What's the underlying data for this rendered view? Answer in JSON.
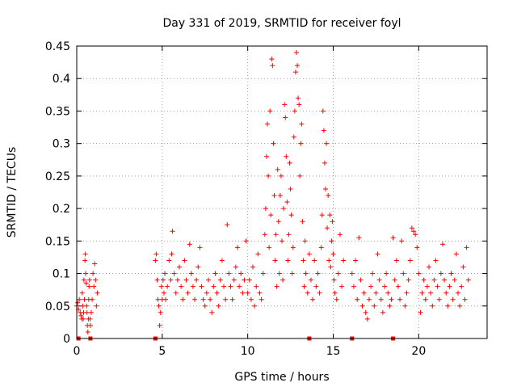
{
  "chart_data": {
    "type": "scatter",
    "title": "Day 331 of 2019, SRMTID for receiver foyl",
    "xlabel": "GPS time / hours",
    "ylabel": "SRMTID / TECUs",
    "xlim": [
      0,
      24
    ],
    "ylim": [
      0,
      0.45
    ],
    "x_ticks": [
      0,
      5,
      10,
      15,
      20
    ],
    "y_ticks": [
      0,
      0.05,
      0.1,
      0.15,
      0.2,
      0.25,
      0.3,
      0.35,
      0.4,
      0.45
    ],
    "y_tick_labels": [
      "0",
      "0.05",
      "0.1",
      "0.15",
      "0.2",
      "0.25",
      "0.3",
      "0.35",
      "0.4",
      "0.45"
    ],
    "grid": true,
    "marker": "+",
    "color": "#ff0000",
    "zero_markers_x": [
      0.1,
      0.8,
      4.6,
      13.6,
      16.1,
      18.5
    ],
    "series": [
      {
        "points": [
          [
            0.0,
            0.05
          ],
          [
            0.05,
            0.055
          ],
          [
            0.1,
            0.045
          ],
          [
            0.15,
            0.06
          ],
          [
            0.2,
            0.04
          ],
          [
            0.25,
            0.035
          ],
          [
            0.3,
            0.03
          ],
          [
            0.32,
            0.07
          ],
          [
            0.35,
            0.05
          ],
          [
            0.38,
            0.03
          ],
          [
            0.4,
            0.04
          ],
          [
            0.42,
            0.09
          ],
          [
            0.45,
            0.06
          ],
          [
            0.48,
            0.12
          ],
          [
            0.5,
            0.13
          ],
          [
            0.52,
            0.1
          ],
          [
            0.55,
            0.085
          ],
          [
            0.58,
            0.05
          ],
          [
            0.6,
            0.04
          ],
          [
            0.62,
            0.02
          ],
          [
            0.65,
            0.01
          ],
          [
            0.68,
            0.03
          ],
          [
            0.7,
            0.06
          ],
          [
            0.72,
            0.08
          ],
          [
            0.75,
            0.09
          ],
          [
            0.78,
            0.03
          ],
          [
            0.8,
            0.02
          ],
          [
            0.85,
            0.04
          ],
          [
            0.9,
            0.06
          ],
          [
            0.95,
            0.1
          ],
          [
            1.0,
            0.08
          ],
          [
            1.05,
            0.115
          ],
          [
            1.1,
            0.09
          ],
          [
            1.15,
            0.05
          ],
          [
            1.2,
            0.07
          ],
          [
            4.6,
            0.12
          ],
          [
            4.65,
            0.13
          ],
          [
            4.7,
            0.09
          ],
          [
            4.75,
            0.06
          ],
          [
            4.8,
            0.05
          ],
          [
            4.85,
            0.02
          ],
          [
            4.9,
            0.04
          ],
          [
            4.95,
            0.08
          ],
          [
            5.0,
            0.06
          ],
          [
            5.05,
            0.09
          ],
          [
            5.1,
            0.07
          ],
          [
            5.15,
            0.1
          ],
          [
            5.2,
            0.06
          ],
          [
            5.3,
            0.08
          ],
          [
            5.4,
            0.12
          ],
          [
            5.5,
            0.09
          ],
          [
            5.55,
            0.13
          ],
          [
            5.6,
            0.165
          ],
          [
            5.7,
            0.1
          ],
          [
            5.8,
            0.07
          ],
          [
            5.9,
            0.09
          ],
          [
            6.0,
            0.11
          ],
          [
            6.1,
            0.08
          ],
          [
            6.2,
            0.06
          ],
          [
            6.3,
            0.12
          ],
          [
            6.4,
            0.09
          ],
          [
            6.5,
            0.07
          ],
          [
            6.6,
            0.145
          ],
          [
            6.7,
            0.1
          ],
          [
            6.8,
            0.08
          ],
          [
            6.9,
            0.06
          ],
          [
            7.0,
            0.09
          ],
          [
            7.1,
            0.11
          ],
          [
            7.2,
            0.14
          ],
          [
            7.3,
            0.08
          ],
          [
            7.4,
            0.06
          ],
          [
            7.5,
            0.05
          ],
          [
            7.6,
            0.07
          ],
          [
            7.7,
            0.09
          ],
          [
            7.8,
            0.06
          ],
          [
            7.9,
            0.04
          ],
          [
            8.0,
            0.08
          ],
          [
            8.1,
            0.1
          ],
          [
            8.2,
            0.07
          ],
          [
            8.3,
            0.05
          ],
          [
            8.4,
            0.09
          ],
          [
            8.5,
            0.12
          ],
          [
            8.6,
            0.08
          ],
          [
            8.7,
            0.06
          ],
          [
            8.8,
            0.175
          ],
          [
            8.9,
            0.1
          ],
          [
            9.0,
            0.08
          ],
          [
            9.1,
            0.06
          ],
          [
            9.2,
            0.09
          ],
          [
            9.3,
            0.11
          ],
          [
            9.4,
            0.14
          ],
          [
            9.5,
            0.08
          ],
          [
            9.6,
            0.1
          ],
          [
            9.7,
            0.07
          ],
          [
            9.8,
            0.09
          ],
          [
            9.9,
            0.15
          ],
          [
            10.0,
            0.07
          ],
          [
            10.1,
            0.09
          ],
          [
            10.2,
            0.06
          ],
          [
            10.3,
            0.11
          ],
          [
            10.4,
            0.05
          ],
          [
            10.5,
            0.08
          ],
          [
            10.6,
            0.13
          ],
          [
            10.7,
            0.07
          ],
          [
            10.8,
            0.06
          ],
          [
            10.9,
            0.1
          ],
          [
            11.0,
            0.16
          ],
          [
            11.05,
            0.2
          ],
          [
            11.1,
            0.28
          ],
          [
            11.15,
            0.33
          ],
          [
            11.2,
            0.25
          ],
          [
            11.25,
            0.14
          ],
          [
            11.3,
            0.35
          ],
          [
            11.35,
            0.19
          ],
          [
            11.4,
            0.43
          ],
          [
            11.45,
            0.42
          ],
          [
            11.5,
            0.3
          ],
          [
            11.55,
            0.22
          ],
          [
            11.6,
            0.12
          ],
          [
            11.65,
            0.16
          ],
          [
            11.7,
            0.08
          ],
          [
            11.75,
            0.26
          ],
          [
            11.8,
            0.18
          ],
          [
            11.85,
            0.1
          ],
          [
            11.9,
            0.22
          ],
          [
            11.95,
            0.25
          ],
          [
            12.0,
            0.15
          ],
          [
            12.05,
            0.09
          ],
          [
            12.1,
            0.2
          ],
          [
            12.15,
            0.36
          ],
          [
            12.2,
            0.34
          ],
          [
            12.25,
            0.28
          ],
          [
            12.3,
            0.21
          ],
          [
            12.35,
            0.12
          ],
          [
            12.4,
            0.16
          ],
          [
            12.45,
            0.27
          ],
          [
            12.5,
            0.23
          ],
          [
            12.55,
            0.19
          ],
          [
            12.6,
            0.1
          ],
          [
            12.65,
            0.14
          ],
          [
            12.7,
            0.31
          ],
          [
            12.75,
            0.35
          ],
          [
            12.8,
            0.41
          ],
          [
            12.85,
            0.44
          ],
          [
            12.9,
            0.42
          ],
          [
            12.95,
            0.37
          ],
          [
            13.0,
            0.36
          ],
          [
            13.05,
            0.25
          ],
          [
            13.1,
            0.3
          ],
          [
            13.15,
            0.33
          ],
          [
            13.2,
            0.18
          ],
          [
            13.25,
            0.12
          ],
          [
            13.3,
            0.08
          ],
          [
            13.35,
            0.15
          ],
          [
            13.4,
            0.1
          ],
          [
            13.5,
            0.07
          ],
          [
            13.6,
            0.13
          ],
          [
            13.7,
            0.09
          ],
          [
            13.8,
            0.06
          ],
          [
            13.9,
            0.12
          ],
          [
            14.0,
            0.08
          ],
          [
            14.1,
            0.1
          ],
          [
            14.2,
            0.07
          ],
          [
            14.3,
            0.14
          ],
          [
            14.35,
            0.19
          ],
          [
            14.4,
            0.35
          ],
          [
            14.45,
            0.32
          ],
          [
            14.5,
            0.27
          ],
          [
            14.55,
            0.23
          ],
          [
            14.6,
            0.3
          ],
          [
            14.65,
            0.17
          ],
          [
            14.7,
            0.22
          ],
          [
            14.75,
            0.12
          ],
          [
            14.8,
            0.19
          ],
          [
            14.85,
            0.11
          ],
          [
            14.9,
            0.15
          ],
          [
            14.95,
            0.18
          ],
          [
            15.0,
            0.13
          ],
          [
            15.05,
            0.09
          ],
          [
            15.1,
            0.07
          ],
          [
            15.2,
            0.06
          ],
          [
            15.3,
            0.1
          ],
          [
            15.4,
            0.16
          ],
          [
            15.5,
            0.08
          ],
          [
            15.6,
            0.12
          ],
          [
            16.1,
            0.1
          ],
          [
            16.2,
            0.08
          ],
          [
            16.3,
            0.12
          ],
          [
            16.4,
            0.06
          ],
          [
            16.5,
            0.155
          ],
          [
            16.6,
            0.09
          ],
          [
            16.7,
            0.05
          ],
          [
            16.8,
            0.07
          ],
          [
            16.9,
            0.04
          ],
          [
            17.0,
            0.03
          ],
          [
            17.1,
            0.06
          ],
          [
            17.2,
            0.08
          ],
          [
            17.3,
            0.1
          ],
          [
            17.4,
            0.05
          ],
          [
            17.5,
            0.07
          ],
          [
            17.6,
            0.13
          ],
          [
            17.7,
            0.09
          ],
          [
            17.8,
            0.06
          ],
          [
            17.9,
            0.04
          ],
          [
            18.0,
            0.08
          ],
          [
            18.1,
            0.1
          ],
          [
            18.2,
            0.07
          ],
          [
            18.3,
            0.05
          ],
          [
            18.4,
            0.06
          ],
          [
            18.5,
            0.155
          ],
          [
            18.6,
            0.09
          ],
          [
            18.7,
            0.12
          ],
          [
            18.8,
            0.08
          ],
          [
            18.9,
            0.06
          ],
          [
            19.0,
            0.15
          ],
          [
            19.1,
            0.1
          ],
          [
            19.2,
            0.05
          ],
          [
            19.3,
            0.07
          ],
          [
            19.4,
            0.09
          ],
          [
            19.5,
            0.12
          ],
          [
            19.6,
            0.17
          ],
          [
            19.7,
            0.165
          ],
          [
            19.8,
            0.16
          ],
          [
            19.9,
            0.14
          ],
          [
            20.0,
            0.1
          ],
          [
            20.1,
            0.04
          ],
          [
            20.2,
            0.07
          ],
          [
            20.3,
            0.09
          ],
          [
            20.4,
            0.06
          ],
          [
            20.5,
            0.08
          ],
          [
            20.6,
            0.11
          ],
          [
            20.7,
            0.07
          ],
          [
            20.8,
            0.05
          ],
          [
            20.9,
            0.09
          ],
          [
            21.0,
            0.12
          ],
          [
            21.1,
            0.08
          ],
          [
            21.2,
            0.06
          ],
          [
            21.3,
            0.1
          ],
          [
            21.4,
            0.145
          ],
          [
            21.5,
            0.09
          ],
          [
            21.6,
            0.07
          ],
          [
            21.7,
            0.05
          ],
          [
            21.8,
            0.08
          ],
          [
            21.9,
            0.1
          ],
          [
            22.0,
            0.06
          ],
          [
            22.1,
            0.09
          ],
          [
            22.2,
            0.13
          ],
          [
            22.3,
            0.07
          ],
          [
            22.4,
            0.05
          ],
          [
            22.5,
            0.08
          ],
          [
            22.6,
            0.11
          ],
          [
            22.7,
            0.06
          ],
          [
            22.8,
            0.14
          ],
          [
            22.9,
            0.09
          ]
        ]
      }
    ]
  }
}
